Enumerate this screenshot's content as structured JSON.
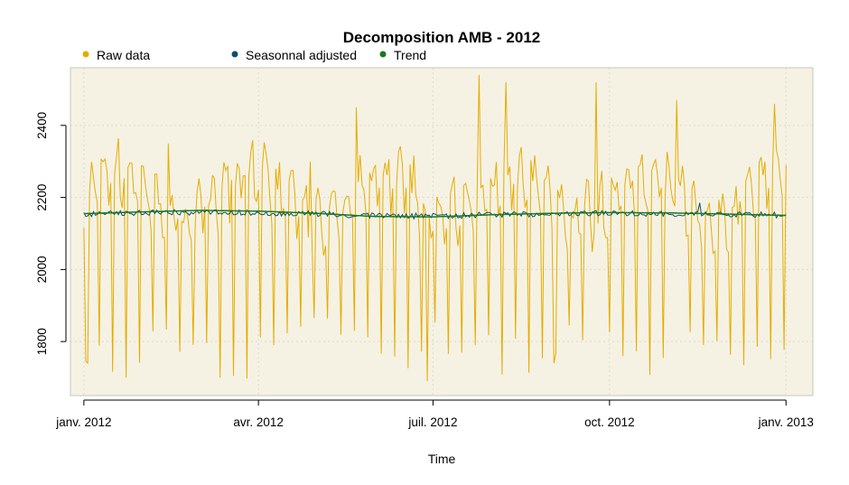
{
  "chart_data": {
    "type": "line",
    "title": "Decomposition AMB - 2012",
    "xlabel": "Time",
    "ylabel": "",
    "x_ticks": [
      "janv. 2012",
      "avr. 2012",
      "juil. 2012",
      "oct. 2012",
      "janv. 2013"
    ],
    "y_ticks": [
      1800,
      2000,
      2200,
      2400
    ],
    "xlim": [
      "2011-12-25",
      "2013-01-15"
    ],
    "ylim": [
      1650,
      2560
    ],
    "grid": true,
    "plot_background": "#f5f2e4",
    "legend_position": "top-left",
    "series": [
      {
        "name": "Raw data",
        "color": "#e6ac00",
        "start_date": "2012-01-01",
        "frequency": "daily",
        "weekly_pattern": [
          2150,
          1780,
          2220,
          2250,
          2260,
          2200,
          2150
        ],
        "peak_values": [
          {
            "date": "2012-01-03",
            "value": 1740
          },
          {
            "date": "2012-02-14",
            "value": 2350
          },
          {
            "date": "2012-03-12",
            "value": 1700
          },
          {
            "date": "2012-04-28",
            "value": 2300
          },
          {
            "date": "2012-05-22",
            "value": 2450
          },
          {
            "date": "2012-06-28",
            "value": 1690
          },
          {
            "date": "2012-07-25",
            "value": 2540
          },
          {
            "date": "2012-08-08",
            "value": 2520
          },
          {
            "date": "2012-09-02",
            "value": 1740
          },
          {
            "date": "2012-09-24",
            "value": 2520
          },
          {
            "date": "2012-11-05",
            "value": 2470
          },
          {
            "date": "2012-12-26",
            "value": 2460
          }
        ]
      },
      {
        "name": "Seasonnal adjusted",
        "color": "#0b4f6c",
        "base_value": 2152,
        "noise_amplitude": 8,
        "spike": {
          "date": "2012-11-17",
          "value": 2185
        }
      },
      {
        "name": "Trend",
        "color": "#1a7a1a",
        "start_date": "2012-01-01",
        "frequency": "monthly",
        "values": [
          2155,
          2160,
          2164,
          2162,
          2156,
          2147,
          2146,
          2152,
          2156,
          2158,
          2157,
          2154,
          2150
        ]
      }
    ]
  }
}
